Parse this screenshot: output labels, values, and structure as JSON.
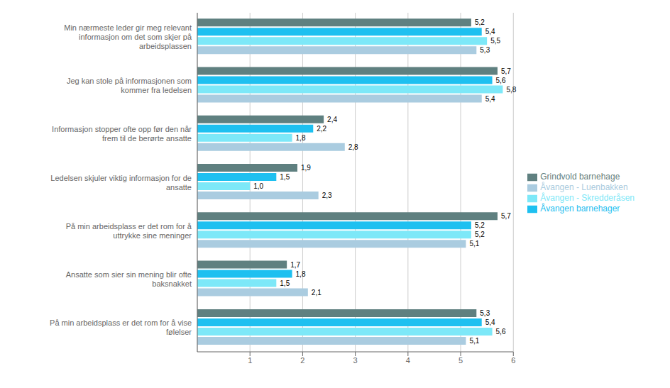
{
  "chart_data": {
    "type": "bar",
    "orientation": "horizontal",
    "categories": [
      "Min nærmeste leder gir meg relevant\ninformasjon om det som skjer på\narbeidsplassen",
      "Jeg kan stole på informasjonen som\nkommer fra ledelsen",
      "Informasjon stopper ofte opp før den når\nfrem til de berørte ansatte",
      "Ledelsen skjuler viktig informasjon for de\nansatte",
      "På min arbeidsplass er det rom for å\nuttrykke sine meninger",
      "Ansatte som sier sin mening blir ofte\nbaksnakket",
      "På min arbeidsplass er det rom for å vise\nfølelser"
    ],
    "series": [
      {
        "name": "Grindvold barnehage",
        "color": "#5f8080",
        "values": [
          5.2,
          5.7,
          2.4,
          1.9,
          5.7,
          1.7,
          5.3
        ],
        "value_labels": [
          "5,2",
          "5,7",
          "2,4",
          "1,9",
          "5,7",
          "1,7",
          "5,3"
        ]
      },
      {
        "name": "Åvangen barnehager",
        "color": "#1ec0f0",
        "values": [
          5.4,
          5.6,
          2.2,
          1.5,
          5.2,
          1.8,
          5.4
        ],
        "value_labels": [
          "5,4",
          "5,6",
          "2,2",
          "1,5",
          "5,2",
          "1,8",
          "5,4"
        ]
      },
      {
        "name": "Åvangen - Skredderåsen",
        "color": "#7de8f8",
        "values": [
          5.5,
          5.8,
          1.8,
          1.0,
          5.2,
          1.5,
          5.6
        ],
        "value_labels": [
          "5,5",
          "5,8",
          "1,8",
          "1,0",
          "5,2",
          "1,5",
          "5,6"
        ]
      },
      {
        "name": "Åvangen - Luenbakken",
        "color": "#aacce0",
        "values": [
          5.3,
          5.4,
          2.8,
          2.3,
          5.1,
          2.1,
          5.1
        ],
        "value_labels": [
          "5,3",
          "5,4",
          "2,8",
          "2,3",
          "5,1",
          "2,1",
          "5,1"
        ]
      }
    ],
    "xlim": [
      0,
      6
    ],
    "xticks": [
      1,
      2,
      3,
      4,
      5,
      6
    ],
    "grid": true,
    "legend": "right",
    "data_labels": true
  }
}
